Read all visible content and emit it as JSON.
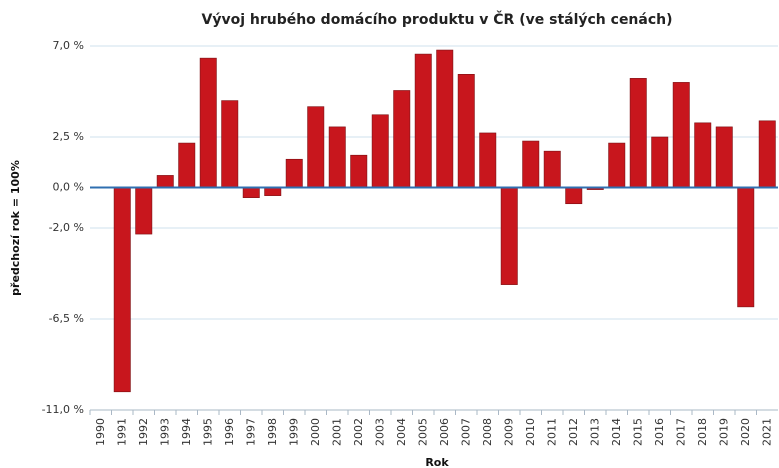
{
  "chart_data": {
    "type": "bar",
    "title": "Vývoj hrubého domácího produktu v ČR (ve stálých cenách)",
    "x_label": "Rok",
    "y_label": "předchozí rok = 100%",
    "categories": [
      "1990",
      "1991",
      "1992",
      "1993",
      "1994",
      "1995",
      "1996",
      "1997",
      "1998",
      "1999",
      "2000",
      "2001",
      "2002",
      "2003",
      "2004",
      "2005",
      "2006",
      "2007",
      "2008",
      "2009",
      "2010",
      "2011",
      "2012",
      "2013",
      "2014",
      "2015",
      "2016",
      "2017",
      "2018",
      "2019",
      "2020",
      "2021"
    ],
    "values": [
      null,
      -10.1,
      -2.3,
      0.6,
      2.2,
      6.4,
      4.3,
      -0.5,
      -0.4,
      1.4,
      4.0,
      3.0,
      1.6,
      3.6,
      4.8,
      6.6,
      6.8,
      5.6,
      2.7,
      -4.8,
      2.3,
      1.8,
      -0.8,
      -0.1,
      2.2,
      5.4,
      2.5,
      5.2,
      3.2,
      3.0,
      -5.9,
      3.3
    ],
    "color": "#c8161d",
    "ylim": [
      -11,
      7
    ],
    "yticks": [
      {
        "value": -11,
        "label": "-11,0 %"
      },
      {
        "value": -6.5,
        "label": "-6,5 %"
      },
      {
        "value": -2,
        "label": "-2,0 %"
      },
      {
        "value": 0,
        "label": "0,0 %"
      },
      {
        "value": 2.5,
        "label": "2,5 %"
      },
      {
        "value": 7,
        "label": "7,0 %"
      }
    ],
    "grid": true
  }
}
